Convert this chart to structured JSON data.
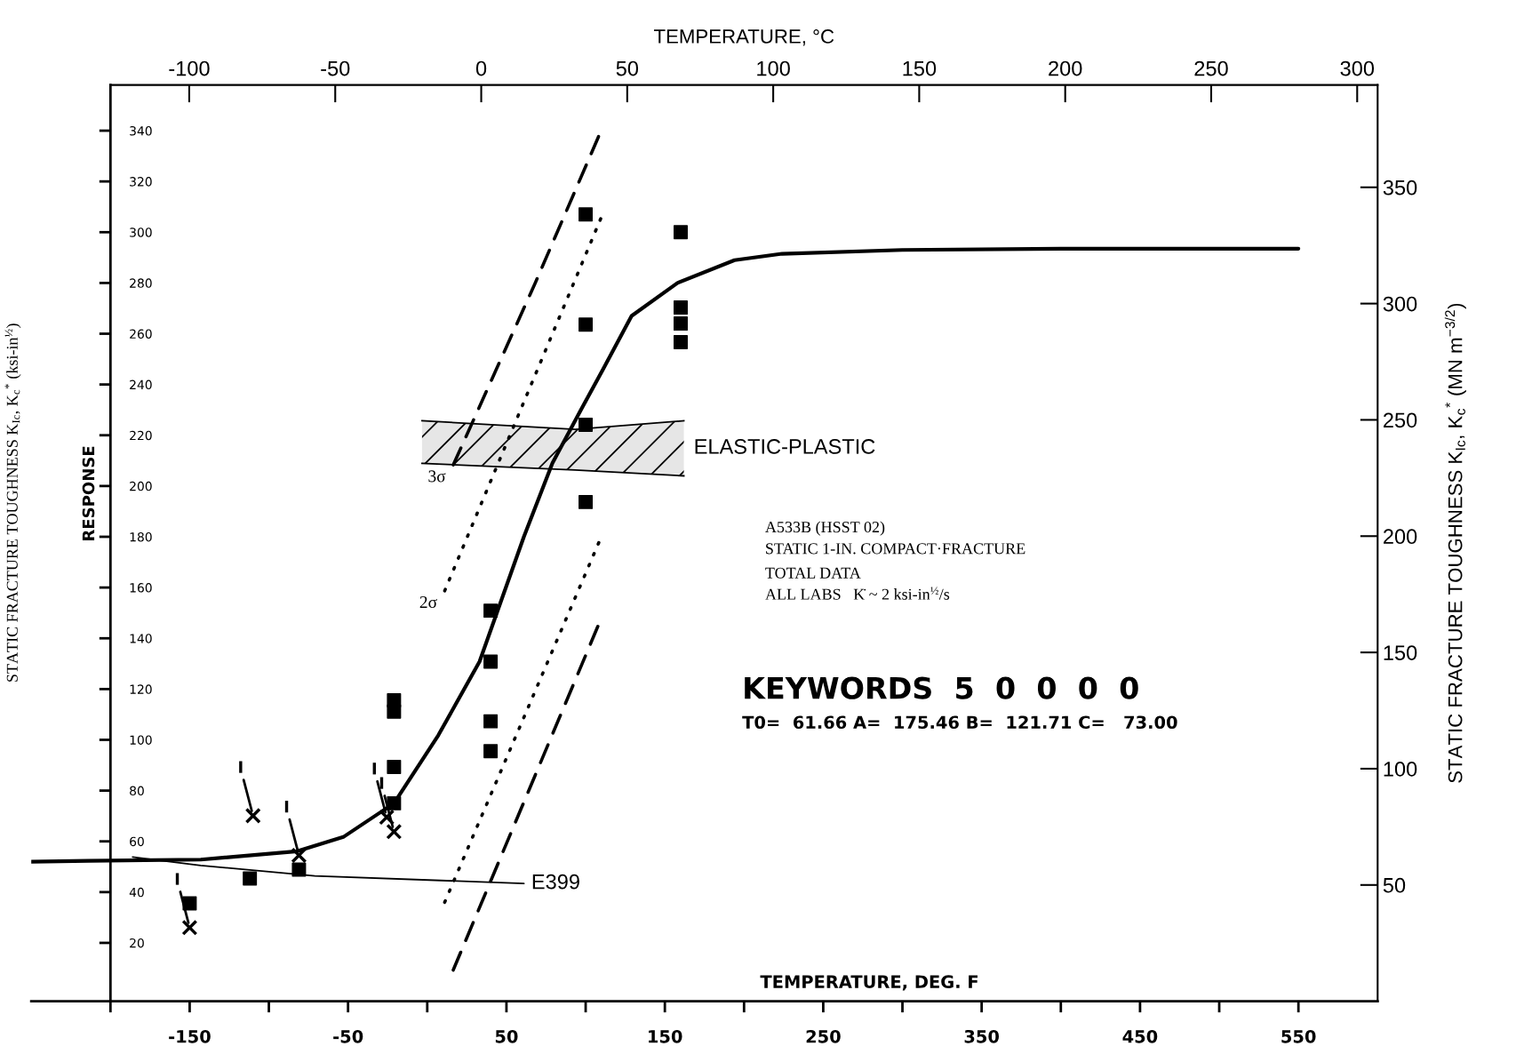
{
  "chart_data": {
    "type": "scatter",
    "xlabel": "TEMPERATURE, DEG. F",
    "ylabel": "STATIC FRACTURE TOUGHNESS K$_{Ic}$, K$_{c}$$^{*}$ (ksi-in$^{½}$)",
    "x2label": "TEMPERATURE, °C",
    "y2label": "STATIC FRACTURE TOUGHNESS K$_{Ic}$, K$_{c}$$^{*}$ (MN m$^{−3/2}$)",
    "xlim": [
      -250,
      600
    ],
    "xticks": [
      {
        "value": -200,
        "label": null
      },
      -150,
      {
        "value": -100,
        "label": null
      },
      -50,
      {
        "value": 0,
        "label": null
      },
      50,
      {
        "value": 100,
        "label": null
      },
      150,
      {
        "value": 200,
        "label": null
      },
      250,
      {
        "value": 300,
        "label": null
      },
      350,
      {
        "value": 400,
        "label": null
      },
      450,
      {
        "value": 500,
        "label": null
      },
      550
    ],
    "ylim": [
      -3,
      358
    ],
    "yticks": [
      20,
      40,
      60,
      80,
      100,
      120,
      140,
      160,
      180,
      200,
      220,
      240,
      260,
      280,
      300,
      320,
      340
    ],
    "x2lim": [
      -127,
      307
    ],
    "x2ticks": [
      -100,
      -50,
      0,
      50,
      100,
      150,
      200,
      250,
      300
    ],
    "y2lim": [
      0,
      394
    ],
    "y2ticks": [
      50,
      100,
      150,
      200,
      250,
      300,
      350
    ],
    "grid": false,
    "legend": false,
    "series": [
      {
        "marker": "square",
        "color": "#000000",
        "x": [
          -150,
          -112,
          -81,
          -21,
          -21,
          -21,
          -21,
          40,
          40,
          40,
          40,
          100,
          100,
          100,
          100,
          160,
          160,
          160,
          160
        ],
        "values": [
          35.6,
          45.4,
          48.9,
          115.6,
          111.1,
          89.3,
          75.0,
          150.9,
          130.8,
          107.3,
          95.5,
          307,
          263.6,
          224.1,
          193.7,
          300,
          270.3,
          264.0,
          256.7
        ]
      },
      {
        "marker": "cross",
        "color": "#000000",
        "x": [
          -150,
          -110,
          -81,
          -25.6,
          -21
        ],
        "values": [
          26.0,
          70.1,
          54.5,
          69.5,
          63.8
        ]
      },
      {
        "type": "line",
        "line_style": "solid",
        "color": "#000000",
        "x": [
          -250,
          -214,
          -143,
          -82,
          -53,
          -21,
          7,
          33,
          61,
          79,
          97,
          111,
          129,
          158,
          194,
          224,
          300,
          400,
          550
        ],
        "values": [
          52,
          52.3,
          52.8,
          56.1,
          61.7,
          75,
          101.8,
          130.8,
          180,
          209,
          230,
          246,
          267,
          280,
          289,
          291.5,
          293,
          293.5,
          293.5
        ]
      },
      {
        "type": "line",
        "name": "E399",
        "line_style": "solid",
        "color": "#000000",
        "x": [
          -186,
          -143,
          -71,
          61
        ],
        "values": [
          53.8,
          50.5,
          46.4,
          43.4
        ]
      },
      {
        "type": "line",
        "name": "3σ",
        "line_style": "dashed",
        "color": "#000000",
        "x": [
          16.4,
          68.4,
          108.3
        ],
        "values": [
          208.3,
          280.3,
          337.9
        ]
      },
      {
        "type": "line",
        "line_style": "dashed",
        "color": "#000000",
        "x": [
          16.4,
          107.7
        ],
        "values": [
          9.3,
          144.7
        ]
      },
      {
        "type": "line",
        "name": "2σ",
        "line_style": "dotted",
        "color": "#000000",
        "x": [
          11,
          109.5
        ],
        "values": [
          158.7,
          305.3
        ]
      },
      {
        "type": "line",
        "line_style": "dotted",
        "color": "#000000",
        "x": [
          11,
          108.3
        ],
        "values": [
          36,
          177.7
        ]
      },
      {
        "type": "line",
        "line_style": "solid",
        "name": "ELASTIC-PLASTIC",
        "color": "#000000",
        "x": [
          -3.3,
          93.4,
          162
        ],
        "values": [
          225.7,
          222.3,
          225.7
        ],
        "upper": [
          225.7,
          222.3,
          225.7
        ],
        "lower": [
          208.9,
          206.3,
          204
        ]
      }
    ],
    "annotations": [
      "RESPONSE",
      "A533B (HSST 02)",
      "STATIC 1-IN. COMPACT·FRACTURE",
      "TOTAL DATA",
      "ALL LABS   K̇ ~ 2 ksi-in$^{½}$/s",
      "KEYWORDS  5  0  0  0  0",
      "T0=  61.66 A=  175.46 B=  121.71 C=   73.00",
      {
        "text": "I",
        "x": -150,
        "y": 26.0
      },
      {
        "text": "I",
        "x": -110,
        "y": 70.1
      },
      {
        "text": "I",
        "x": -81,
        "y": 54.5
      },
      {
        "text": "I",
        "x": -25.6,
        "y": 69.5
      },
      {
        "text": "I",
        "x": -21,
        "y": 63.8
      }
    ]
  }
}
